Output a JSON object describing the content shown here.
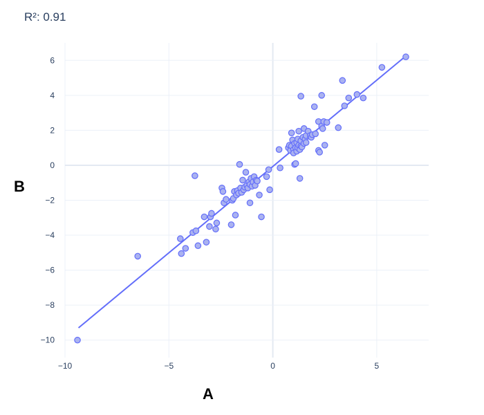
{
  "chart_data": {
    "type": "scatter",
    "title": "",
    "annotation": "R²: 0.91",
    "xlabel": "A",
    "ylabel": "B",
    "xlim": [
      -10,
      7.5
    ],
    "ylim": [
      -11,
      7
    ],
    "x_ticks": [
      -10,
      -5,
      0,
      5
    ],
    "x_tick_labels": [
      "−10",
      "−5",
      "0",
      "5"
    ],
    "y_ticks": [
      -10,
      -8,
      -6,
      -4,
      -2,
      0,
      2,
      4,
      6
    ],
    "y_tick_labels": [
      "−10",
      "−8",
      "−6",
      "−4",
      "−2",
      "0",
      "2",
      "4",
      "6"
    ],
    "grid": true,
    "colors": {
      "marker_fill": "#aab2f0",
      "marker_line": "#636efa",
      "trendline": "#636efa",
      "grid": "#ebf0f8",
      "zeroline": "#e3e9f2"
    },
    "trendline": {
      "x": [
        -9.35,
        6.4
      ],
      "y": [
        -9.3,
        6.25
      ]
    },
    "series": [
      {
        "points": [
          [
            -9.4,
            -10.0
          ],
          [
            -6.5,
            -5.2
          ],
          [
            -4.4,
            -5.05
          ],
          [
            -4.45,
            -4.2
          ],
          [
            -4.2,
            -4.75
          ],
          [
            -3.85,
            -3.85
          ],
          [
            -3.7,
            -3.75
          ],
          [
            -3.6,
            -4.6
          ],
          [
            -3.75,
            -0.6
          ],
          [
            -3.3,
            -2.95
          ],
          [
            -3.2,
            -4.4
          ],
          [
            -3.05,
            -3.5
          ],
          [
            -3.0,
            -2.95
          ],
          [
            -2.95,
            -2.75
          ],
          [
            -2.75,
            -3.65
          ],
          [
            -2.7,
            -3.3
          ],
          [
            -2.45,
            -1.3
          ],
          [
            -2.4,
            -1.5
          ],
          [
            -2.35,
            -2.15
          ],
          [
            -2.25,
            -1.95
          ],
          [
            -2.0,
            -3.4
          ],
          [
            -1.95,
            -2.0
          ],
          [
            -1.9,
            -1.9
          ],
          [
            -1.85,
            -1.5
          ],
          [
            -1.8,
            -2.85
          ],
          [
            -1.75,
            -1.7
          ],
          [
            -1.7,
            -1.45
          ],
          [
            -1.65,
            -1.6
          ],
          [
            -1.6,
            0.05
          ],
          [
            -1.55,
            -1.3
          ],
          [
            -1.5,
            -1.55
          ],
          [
            -1.45,
            -0.85
          ],
          [
            -1.4,
            -1.4
          ],
          [
            -1.35,
            -1.25
          ],
          [
            -1.3,
            -0.4
          ],
          [
            -1.25,
            -1.15
          ],
          [
            -1.2,
            -1.3
          ],
          [
            -1.15,
            -0.95
          ],
          [
            -1.1,
            -1.1
          ],
          [
            -1.1,
            -2.15
          ],
          [
            -1.05,
            -0.75
          ],
          [
            -1.0,
            -1.2
          ],
          [
            -0.95,
            -0.95
          ],
          [
            -0.9,
            -0.65
          ],
          [
            -0.85,
            -1.15
          ],
          [
            -0.8,
            -0.85
          ],
          [
            -0.75,
            -0.9
          ],
          [
            -0.65,
            -1.7
          ],
          [
            -0.55,
            -2.95
          ],
          [
            -0.3,
            -0.65
          ],
          [
            -0.2,
            -0.25
          ],
          [
            -0.15,
            -1.4
          ],
          [
            0.3,
            0.9
          ],
          [
            0.35,
            -0.15
          ],
          [
            0.75,
            1.0
          ],
          [
            0.8,
            1.15
          ],
          [
            0.85,
            0.85
          ],
          [
            0.9,
            1.85
          ],
          [
            0.9,
            1.1
          ],
          [
            0.95,
            1.45
          ],
          [
            1.0,
            0.9
          ],
          [
            1.0,
            0.7
          ],
          [
            1.05,
            0.05
          ],
          [
            1.05,
            1.25
          ],
          [
            1.1,
            1.0
          ],
          [
            1.1,
            0.1
          ],
          [
            1.15,
            1.3
          ],
          [
            1.15,
            0.8
          ],
          [
            1.2,
            1.0
          ],
          [
            1.2,
            1.5
          ],
          [
            1.25,
            1.95
          ],
          [
            1.25,
            1.15
          ],
          [
            1.3,
            0.9
          ],
          [
            1.3,
            -0.75
          ],
          [
            1.35,
            1.4
          ],
          [
            1.35,
            1.1
          ],
          [
            1.35,
            3.95
          ],
          [
            1.4,
            1.05
          ],
          [
            1.45,
            1.6
          ],
          [
            1.5,
            1.25
          ],
          [
            1.5,
            2.1
          ],
          [
            1.55,
            1.5
          ],
          [
            1.6,
            1.3
          ],
          [
            1.6,
            1.7
          ],
          [
            1.7,
            1.95
          ],
          [
            1.8,
            1.7
          ],
          [
            1.85,
            1.6
          ],
          [
            1.9,
            1.75
          ],
          [
            2.0,
            3.35
          ],
          [
            2.05,
            1.8
          ],
          [
            2.2,
            2.5
          ],
          [
            2.2,
            0.85
          ],
          [
            2.25,
            0.75
          ],
          [
            2.35,
            2.25
          ],
          [
            2.35,
            4.0
          ],
          [
            2.4,
            2.1
          ],
          [
            2.45,
            2.5
          ],
          [
            2.5,
            1.15
          ],
          [
            2.6,
            2.45
          ],
          [
            3.15,
            2.15
          ],
          [
            3.35,
            4.85
          ],
          [
            3.45,
            3.4
          ],
          [
            3.65,
            3.85
          ],
          [
            4.05,
            4.05
          ],
          [
            4.35,
            3.85
          ],
          [
            5.25,
            5.6
          ],
          [
            6.4,
            6.2
          ]
        ]
      }
    ]
  }
}
